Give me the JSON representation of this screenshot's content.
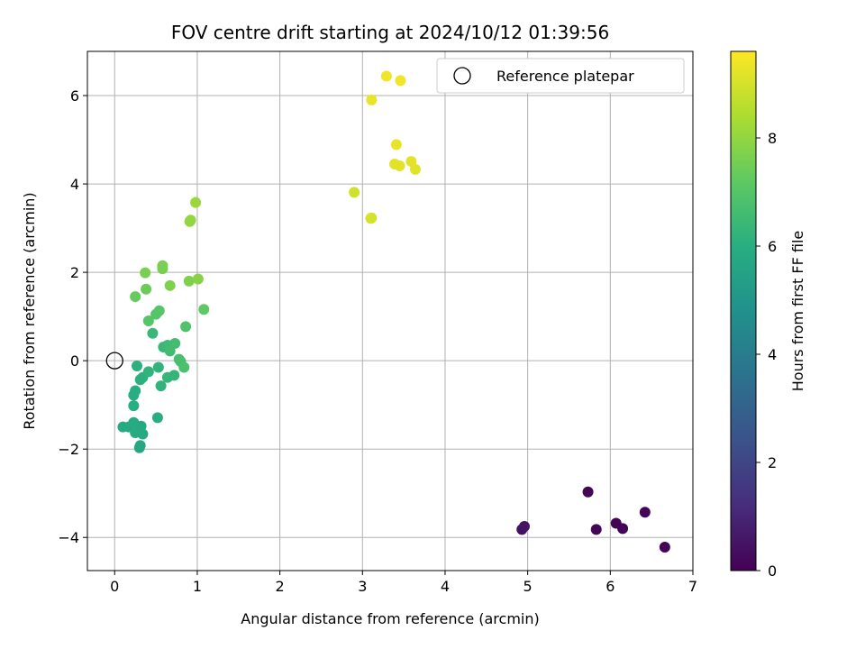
{
  "chart_data": {
    "type": "scatter",
    "title": "FOV centre drift starting at 2024/10/12 01:39:56",
    "xlabel": "Angular distance from reference (arcmin)",
    "ylabel": "Rotation from reference (arcmin)",
    "xlim": [
      -0.33,
      7.0
    ],
    "ylim": [
      -4.75,
      7.0
    ],
    "xticks": [
      0,
      1,
      2,
      3,
      4,
      5,
      6,
      7
    ],
    "xtick_labels": [
      "0",
      "1",
      "2",
      "3",
      "4",
      "5",
      "6",
      "7"
    ],
    "yticks": [
      -4,
      -2,
      0,
      2,
      4,
      6
    ],
    "ytick_labels": [
      "−4",
      "−2",
      "0",
      "2",
      "4",
      "6"
    ],
    "grid": true,
    "legend": {
      "placement": "top-right",
      "entries": [
        "Reference platepar"
      ]
    },
    "reference_point": {
      "x": 0,
      "y": 0,
      "marker": "open-circle"
    },
    "colorbar": {
      "label": "Hours from first FF file",
      "colormap": "viridis",
      "range": [
        0,
        9.6
      ],
      "ticks": [
        0,
        2,
        4,
        6,
        8
      ],
      "tick_labels": [
        "0",
        "2",
        "4",
        "6",
        "8"
      ]
    },
    "points": [
      {
        "x": 4.93,
        "y": -3.82,
        "c": 0.4
      },
      {
        "x": 4.96,
        "y": -3.75,
        "c": 0.5
      },
      {
        "x": 5.73,
        "y": -2.97,
        "c": 0.1
      },
      {
        "x": 5.83,
        "y": -3.82,
        "c": 0.1
      },
      {
        "x": 6.07,
        "y": -3.68,
        "c": 0.1
      },
      {
        "x": 6.15,
        "y": -3.8,
        "c": 0.1
      },
      {
        "x": 6.42,
        "y": -3.43,
        "c": 0.1
      },
      {
        "x": 6.66,
        "y": -4.22,
        "c": 0.1
      },
      {
        "x": 0.1,
        "y": -1.5,
        "c": 5.8
      },
      {
        "x": 0.17,
        "y": -1.5,
        "c": 5.8
      },
      {
        "x": 0.23,
        "y": -1.4,
        "c": 5.9
      },
      {
        "x": 0.25,
        "y": -1.63,
        "c": 5.9
      },
      {
        "x": 0.32,
        "y": -1.48,
        "c": 5.8
      },
      {
        "x": 0.34,
        "y": -1.66,
        "c": 5.8
      },
      {
        "x": 0.3,
        "y": -1.97,
        "c": 5.7
      },
      {
        "x": 0.31,
        "y": -1.92,
        "c": 5.7
      },
      {
        "x": 0.23,
        "y": -1.02,
        "c": 6.0
      },
      {
        "x": 0.23,
        "y": -0.78,
        "c": 6.0
      },
      {
        "x": 0.25,
        "y": -0.68,
        "c": 6.0
      },
      {
        "x": 0.27,
        "y": -0.12,
        "c": 6.1
      },
      {
        "x": 0.31,
        "y": -0.43,
        "c": 6.1
      },
      {
        "x": 0.34,
        "y": -0.38,
        "c": 6.1
      },
      {
        "x": 0.41,
        "y": -0.25,
        "c": 6.2
      },
      {
        "x": 0.53,
        "y": -0.15,
        "c": 6.2
      },
      {
        "x": 0.52,
        "y": -1.29,
        "c": 6.0
      },
      {
        "x": 0.56,
        "y": -0.57,
        "c": 6.2
      },
      {
        "x": 0.64,
        "y": -0.38,
        "c": 6.3
      },
      {
        "x": 0.72,
        "y": -0.33,
        "c": 6.3
      },
      {
        "x": 0.46,
        "y": 0.62,
        "c": 6.4
      },
      {
        "x": 0.59,
        "y": 0.31,
        "c": 6.4
      },
      {
        "x": 0.64,
        "y": 0.35,
        "c": 6.5
      },
      {
        "x": 0.67,
        "y": 0.22,
        "c": 6.6
      },
      {
        "x": 0.73,
        "y": 0.39,
        "c": 6.6
      },
      {
        "x": 0.78,
        "y": 0.03,
        "c": 6.7
      },
      {
        "x": 0.8,
        "y": -0.02,
        "c": 6.7
      },
      {
        "x": 0.84,
        "y": -0.15,
        "c": 6.8
      },
      {
        "x": 0.86,
        "y": 0.77,
        "c": 6.9
      },
      {
        "x": 0.41,
        "y": 0.9,
        "c": 7.0
      },
      {
        "x": 0.5,
        "y": 1.05,
        "c": 7.0
      },
      {
        "x": 0.54,
        "y": 1.13,
        "c": 7.0
      },
      {
        "x": 0.25,
        "y": 1.45,
        "c": 7.3
      },
      {
        "x": 0.38,
        "y": 1.62,
        "c": 7.4
      },
      {
        "x": 0.37,
        "y": 1.99,
        "c": 7.6
      },
      {
        "x": 0.58,
        "y": 2.08,
        "c": 7.6
      },
      {
        "x": 0.58,
        "y": 2.15,
        "c": 7.6
      },
      {
        "x": 0.67,
        "y": 1.7,
        "c": 7.7
      },
      {
        "x": 0.9,
        "y": 1.8,
        "c": 7.7
      },
      {
        "x": 1.01,
        "y": 1.85,
        "c": 7.8
      },
      {
        "x": 1.08,
        "y": 1.16,
        "c": 7.2
      },
      {
        "x": 0.91,
        "y": 3.15,
        "c": 8.0
      },
      {
        "x": 0.92,
        "y": 3.18,
        "c": 8.0
      },
      {
        "x": 0.98,
        "y": 3.58,
        "c": 8.1
      },
      {
        "x": 2.9,
        "y": 3.81,
        "c": 8.9
      },
      {
        "x": 3.1,
        "y": 3.22,
        "c": 9.0
      },
      {
        "x": 3.11,
        "y": 3.23,
        "c": 9.0
      },
      {
        "x": 3.11,
        "y": 5.9,
        "c": 9.3
      },
      {
        "x": 3.29,
        "y": 6.44,
        "c": 9.4
      },
      {
        "x": 3.46,
        "y": 6.34,
        "c": 9.4
      },
      {
        "x": 3.41,
        "y": 4.89,
        "c": 9.3
      },
      {
        "x": 3.39,
        "y": 4.45,
        "c": 9.2
      },
      {
        "x": 3.45,
        "y": 4.41,
        "c": 9.2
      },
      {
        "x": 3.59,
        "y": 4.51,
        "c": 9.2
      },
      {
        "x": 3.64,
        "y": 4.33,
        "c": 9.2
      }
    ]
  }
}
